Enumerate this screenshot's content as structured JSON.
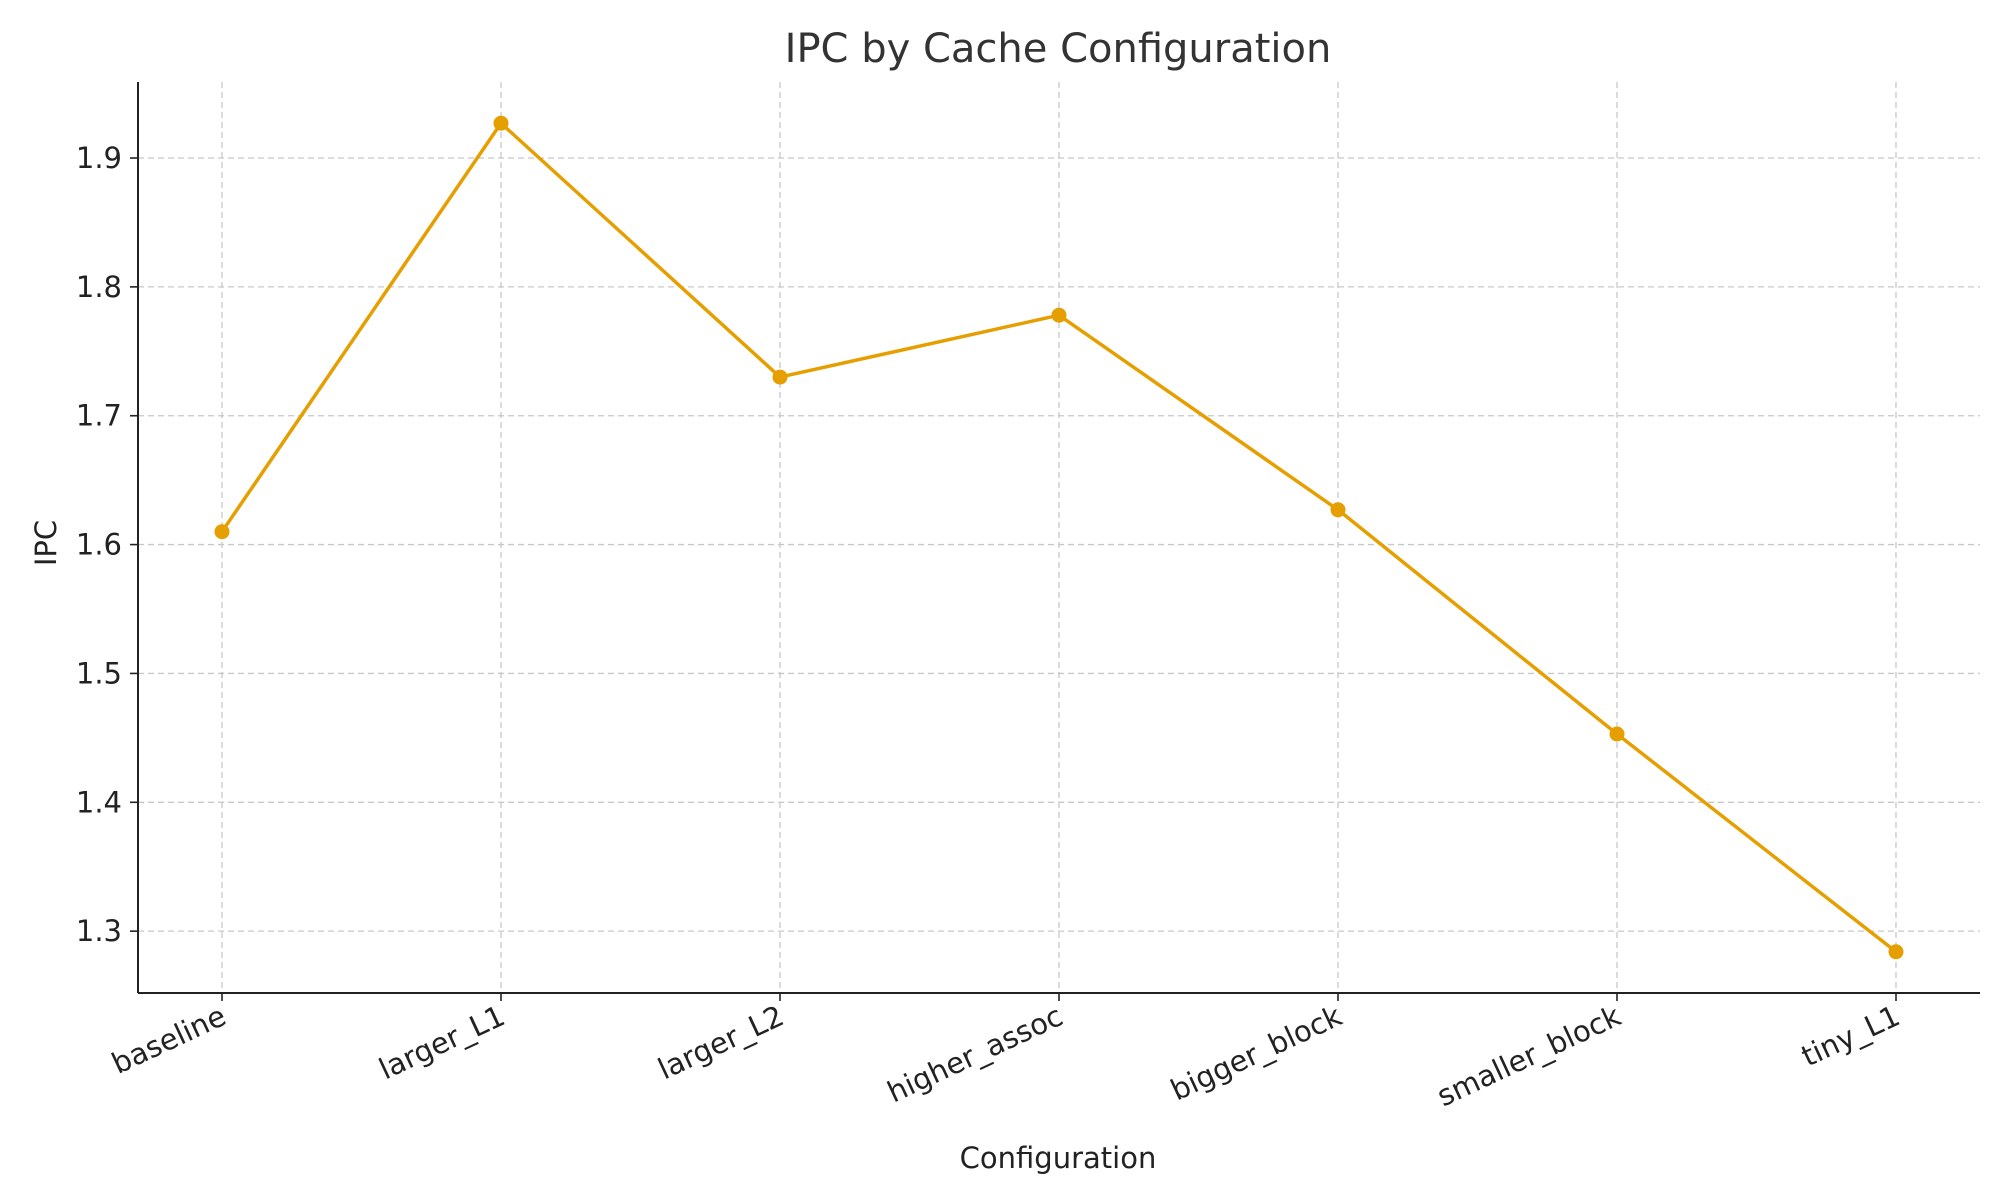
{
  "chart_data": {
    "type": "line",
    "title": "IPC by Cache Configuration",
    "xlabel": "Configuration",
    "ylabel": "IPC",
    "categories": [
      "baseline",
      "larger_L1",
      "larger_L2",
      "higher_assoc",
      "bigger_block",
      "smaller_block",
      "tiny_L1"
    ],
    "series": [
      {
        "values": [
          1.61,
          1.927,
          1.73,
          1.778,
          1.627,
          1.453,
          1.284
        ]
      }
    ],
    "ylim": [
      1.252,
      1.959
    ],
    "yticks": [
      "1.3",
      "1.4",
      "1.5",
      "1.6",
      "1.7",
      "1.8",
      "1.9"
    ],
    "grid": true,
    "line_color": "#E69F00",
    "marker": "circle"
  }
}
